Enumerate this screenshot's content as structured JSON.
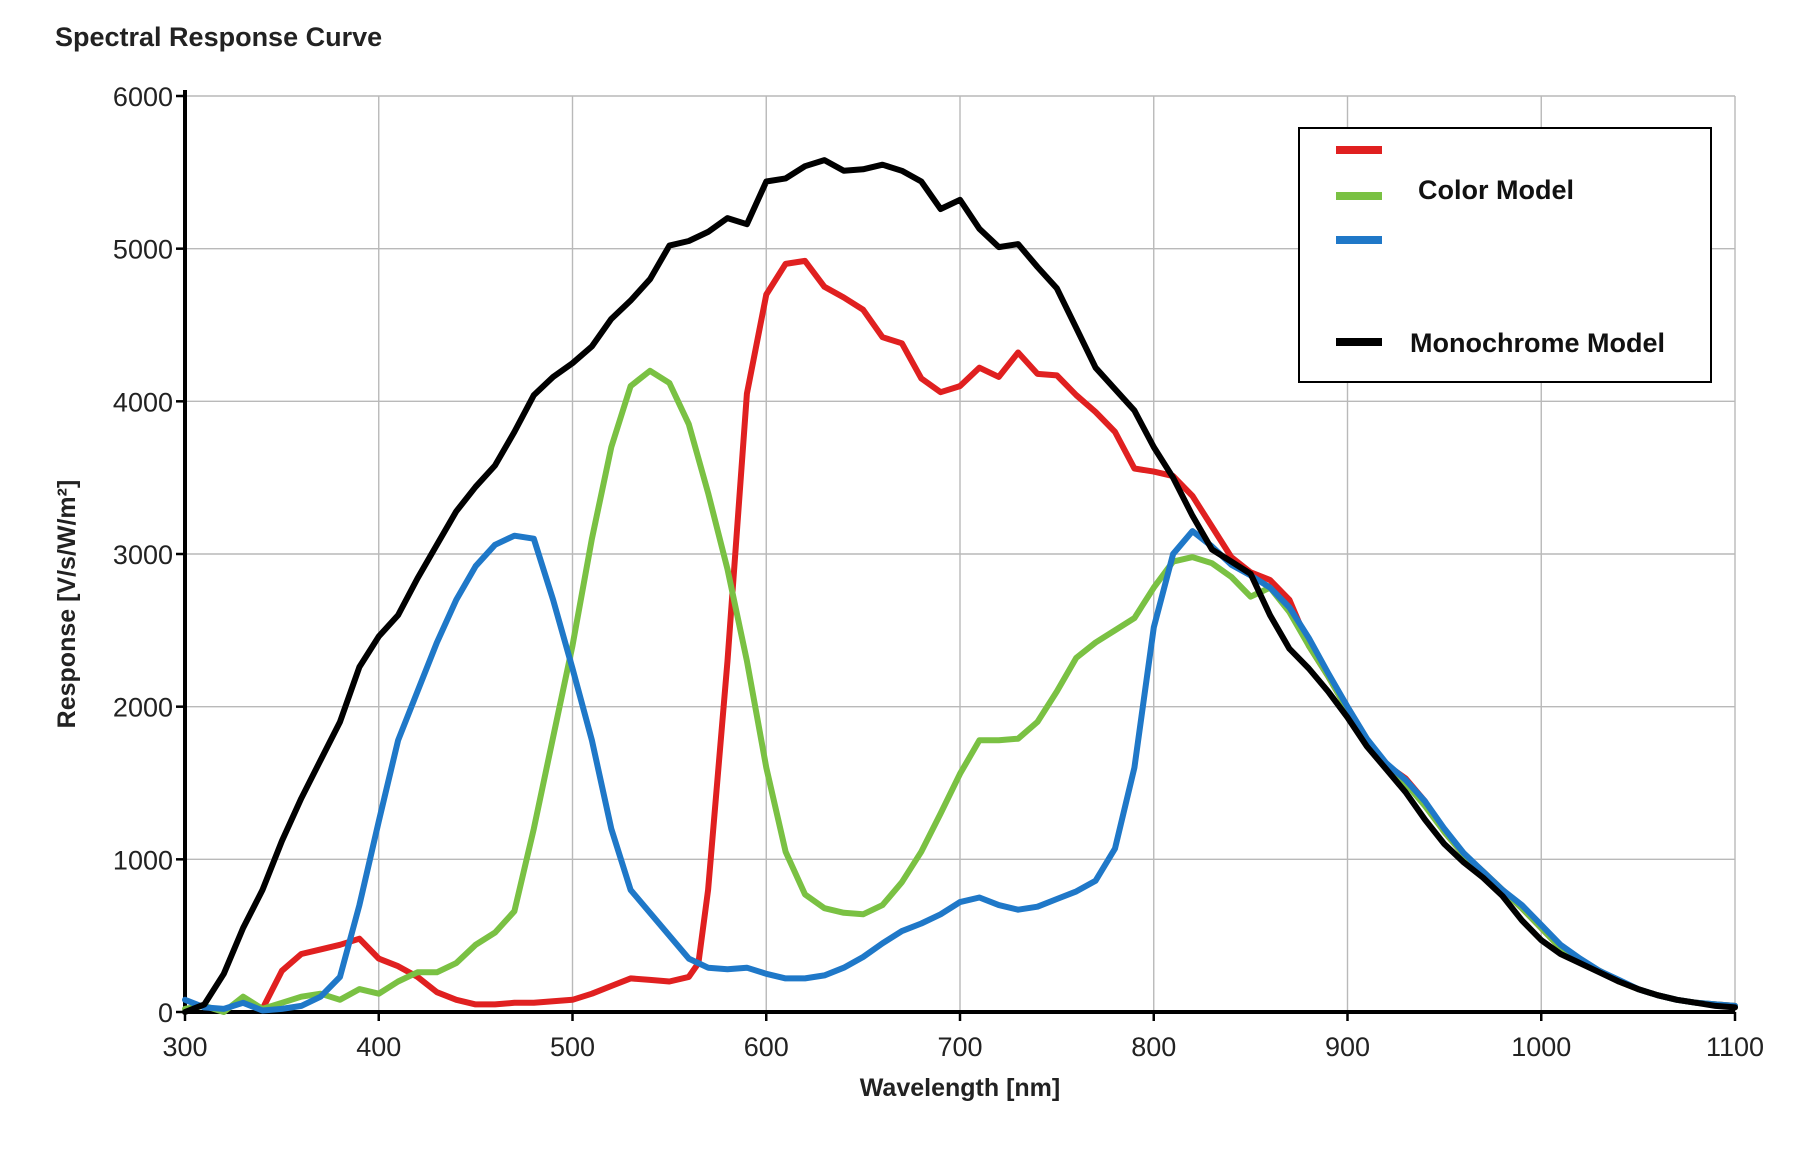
{
  "chart_data": {
    "type": "line",
    "title": "Spectral Response Curve",
    "xlabel": "Wavelength [nm]",
    "ylabel": "Response [V/s/W/m²]",
    "xlim": [
      300,
      1100
    ],
    "ylim": [
      0,
      6000
    ],
    "x_ticks": [
      300,
      400,
      500,
      600,
      700,
      800,
      900,
      1000,
      1100
    ],
    "y_ticks": [
      0,
      1000,
      2000,
      3000,
      4000,
      5000,
      6000
    ],
    "grid": true,
    "legend_position": "top-right",
    "legend_labels": {
      "color_model": "Color Model",
      "monochrome_model": "Monochrome Model"
    },
    "series": [
      {
        "color": "#e02020",
        "x": [
          340,
          350,
          360,
          370,
          380,
          390,
          400,
          410,
          420,
          430,
          440,
          450,
          460,
          470,
          480,
          490,
          500,
          510,
          520,
          530,
          540,
          550,
          560,
          565,
          570,
          580,
          590,
          600,
          610,
          620,
          630,
          640,
          650,
          660,
          670,
          680,
          690,
          700,
          710,
          720,
          730,
          740,
          750,
          760,
          770,
          780,
          790,
          800,
          810,
          820,
          830,
          840,
          850,
          860,
          870,
          880,
          890,
          900,
          910,
          920,
          930,
          940,
          950,
          960,
          970,
          980,
          990,
          1000,
          1010,
          1020,
          1030,
          1040,
          1050,
          1060,
          1070,
          1080,
          1090,
          1100
        ],
        "values": [
          20,
          270,
          380,
          410,
          440,
          480,
          350,
          300,
          230,
          130,
          80,
          50,
          50,
          60,
          60,
          70,
          80,
          120,
          170,
          220,
          210,
          200,
          230,
          320,
          800,
          2300,
          4050,
          4700,
          4900,
          4920,
          4750,
          4680,
          4600,
          4420,
          4380,
          4150,
          4060,
          4100,
          4220,
          4160,
          4320,
          4180,
          4170,
          4040,
          3930,
          3800,
          3560,
          3540,
          3510,
          3380,
          3180,
          2980,
          2880,
          2830,
          2700,
          2400,
          2200,
          1980,
          1780,
          1620,
          1530,
          1380,
          1180,
          1030,
          920,
          800,
          680,
          550,
          420,
          330,
          270,
          200,
          150,
          110,
          80,
          60,
          50,
          40
        ]
      },
      {
        "color": "#7ac143",
        "name": "Color Model",
        "x": [
          300,
          310,
          320,
          330,
          340,
          350,
          360,
          370,
          380,
          390,
          400,
          410,
          420,
          430,
          440,
          450,
          460,
          470,
          480,
          490,
          500,
          510,
          520,
          530,
          540,
          550,
          560,
          570,
          580,
          590,
          600,
          610,
          620,
          630,
          640,
          650,
          660,
          670,
          680,
          690,
          700,
          710,
          720,
          730,
          740,
          750,
          760,
          770,
          780,
          790,
          800,
          810,
          820,
          830,
          840,
          850,
          860,
          870,
          880,
          890,
          900,
          910,
          920,
          930,
          940,
          950,
          960,
          970,
          980,
          990,
          1000,
          1010,
          1020,
          1030,
          1040,
          1050,
          1060,
          1070,
          1080,
          1090,
          1100
        ],
        "values": [
          20,
          40,
          0,
          100,
          20,
          60,
          100,
          120,
          80,
          150,
          120,
          200,
          260,
          260,
          320,
          440,
          520,
          660,
          1200,
          1800,
          2400,
          3100,
          3700,
          4100,
          4200,
          4120,
          3850,
          3400,
          2900,
          2300,
          1600,
          1050,
          770,
          680,
          650,
          640,
          700,
          850,
          1050,
          1300,
          1560,
          1780,
          1780,
          1790,
          1900,
          2100,
          2320,
          2420,
          2500,
          2580,
          2780,
          2950,
          2980,
          2940,
          2850,
          2720,
          2780,
          2620,
          2400,
          2200,
          1980,
          1780,
          1620,
          1500,
          1350,
          1180,
          1030,
          920,
          800,
          680,
          550,
          420,
          330,
          270,
          200,
          150,
          110,
          80,
          60,
          50,
          40
        ]
      },
      {
        "color": "#1f78c8",
        "x": [
          300,
          310,
          320,
          330,
          340,
          350,
          360,
          370,
          380,
          390,
          400,
          410,
          420,
          430,
          440,
          450,
          460,
          470,
          480,
          490,
          500,
          510,
          520,
          530,
          540,
          550,
          560,
          570,
          580,
          590,
          600,
          610,
          620,
          630,
          640,
          650,
          660,
          670,
          680,
          690,
          700,
          710,
          720,
          730,
          740,
          750,
          760,
          770,
          780,
          790,
          800,
          810,
          820,
          830,
          840,
          850,
          860,
          870,
          880,
          890,
          900,
          910,
          920,
          930,
          940,
          950,
          960,
          970,
          980,
          990,
          1000,
          1010,
          1020,
          1030,
          1040,
          1050,
          1060,
          1070,
          1080,
          1090,
          1100
        ],
        "values": [
          80,
          30,
          20,
          60,
          10,
          20,
          40,
          100,
          230,
          700,
          1250,
          1780,
          2100,
          2420,
          2700,
          2920,
          3060,
          3120,
          3100,
          2700,
          2250,
          1780,
          1200,
          800,
          650,
          500,
          350,
          290,
          280,
          290,
          250,
          220,
          220,
          240,
          290,
          360,
          450,
          530,
          580,
          640,
          720,
          750,
          700,
          670,
          690,
          740,
          790,
          860,
          1070,
          1600,
          2520,
          3000,
          3150,
          3050,
          2930,
          2860,
          2780,
          2650,
          2450,
          2220,
          2000,
          1790,
          1630,
          1520,
          1380,
          1200,
          1040,
          920,
          800,
          700,
          570,
          440,
          350,
          270,
          210,
          150,
          110,
          80,
          60,
          50,
          40
        ]
      },
      {
        "color": "#000000",
        "name": "Monochrome Model",
        "x": [
          300,
          310,
          320,
          330,
          340,
          350,
          360,
          370,
          380,
          390,
          400,
          410,
          420,
          430,
          440,
          450,
          460,
          470,
          480,
          490,
          500,
          510,
          520,
          530,
          540,
          550,
          560,
          570,
          580,
          590,
          600,
          610,
          620,
          630,
          640,
          650,
          660,
          670,
          680,
          690,
          700,
          710,
          720,
          730,
          740,
          750,
          760,
          770,
          780,
          790,
          800,
          810,
          820,
          830,
          840,
          850,
          860,
          870,
          880,
          890,
          900,
          910,
          920,
          930,
          940,
          950,
          960,
          970,
          980,
          990,
          1000,
          1010,
          1020,
          1030,
          1040,
          1050,
          1060,
          1070,
          1080,
          1090,
          1100
        ],
        "values": [
          0,
          50,
          250,
          550,
          800,
          1120,
          1400,
          1650,
          1900,
          2260,
          2460,
          2600,
          2840,
          3060,
          3280,
          3440,
          3580,
          3800,
          4040,
          4160,
          4250,
          4360,
          4540,
          4660,
          4800,
          5020,
          5050,
          5110,
          5200,
          5160,
          5440,
          5460,
          5540,
          5580,
          5510,
          5520,
          5550,
          5510,
          5440,
          5260,
          5320,
          5130,
          5010,
          5030,
          4880,
          4740,
          4480,
          4220,
          4080,
          3940,
          3700,
          3500,
          3250,
          3030,
          2950,
          2870,
          2600,
          2380,
          2250,
          2100,
          1930,
          1740,
          1590,
          1440,
          1260,
          1100,
          980,
          880,
          760,
          600,
          470,
          380,
          320,
          260,
          200,
          150,
          110,
          80,
          60,
          40,
          30
        ]
      }
    ]
  }
}
